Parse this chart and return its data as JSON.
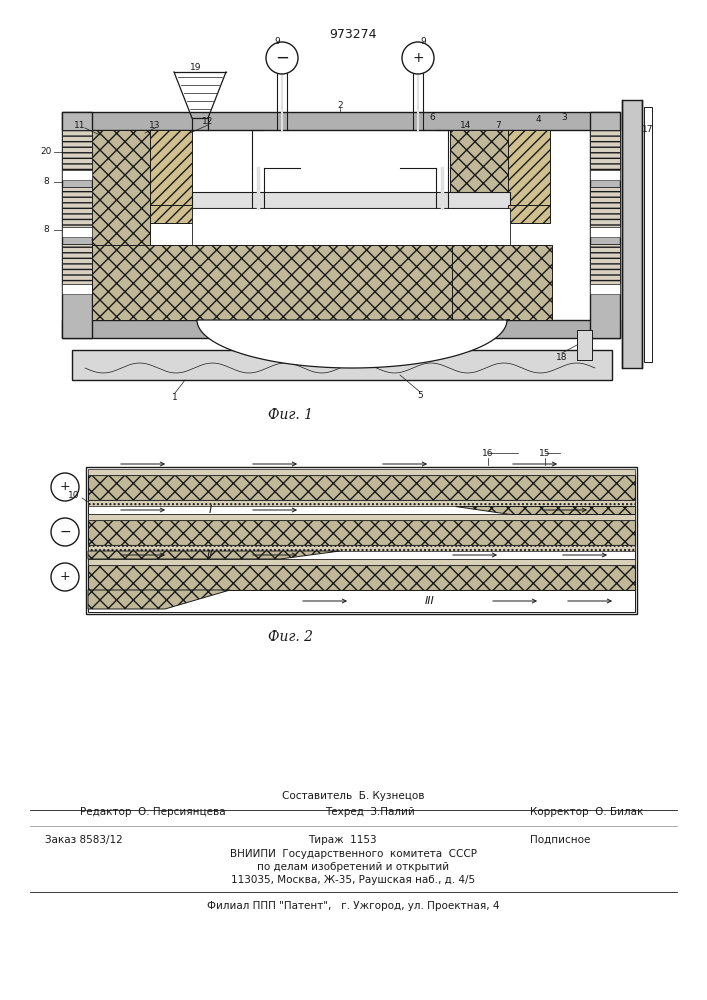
{
  "patent_number": "973274",
  "fig1_caption": "Фиг. 1",
  "fig2_caption": "Фиг. 2",
  "lc": "#1a1a1a",
  "fc_hatch": "#c8c0a8",
  "fc_diag": "#d8cca8",
  "fc_stripe": "#e0d8c0",
  "fc_plate": "#b8b8b8",
  "fc_light": "#e8e8e8",
  "footer_sostavitel": "Составитель  Б. Кузнецов",
  "footer_redaktor": "Редактор  О. Персиянцева",
  "footer_tehred": "Техред  З.Палий",
  "footer_korrektor": "Корректор  О. Билак",
  "footer_zakaz": "Заказ 8583/12",
  "footer_tirazh": "Тираж  1153",
  "footer_podpisnoe": "Подписное",
  "footer_vniipи1": "ВНИИПИ  Государственного  комитета  СССР",
  "footer_vniipи2": "по делам изобретений и открытий",
  "footer_vniipи3": "113035, Москва, Ж-35, Раушская наб., д. 4/5",
  "footer_filial": "Филиал ППП \"Патент\",   г. Ужгород, ул. Проектная, 4"
}
